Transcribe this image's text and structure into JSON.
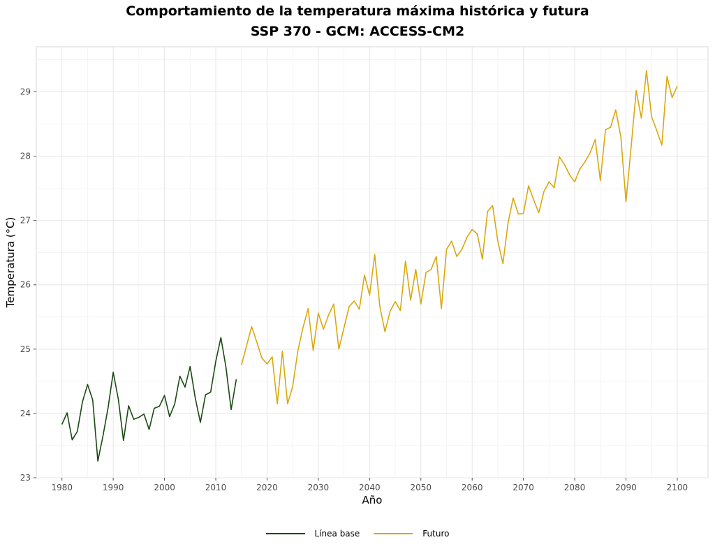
{
  "chart_data": {
    "type": "line",
    "title": "Comportamiento de la temperatura máxima histórica y futura",
    "subtitle": "SSP 370 - GCM: ACCESS-CM2",
    "xlabel": "Año",
    "ylabel": "Temperatura (°C)",
    "xlim": [
      1975,
      2106
    ],
    "ylim": [
      23,
      29.7
    ],
    "xticks": [
      1980,
      1990,
      2000,
      2010,
      2020,
      2030,
      2040,
      2050,
      2060,
      2070,
      2080,
      2090,
      2100
    ],
    "yticks": [
      23,
      24,
      25,
      26,
      27,
      28,
      29
    ],
    "grid": true,
    "legend_position": "bottom",
    "series": [
      {
        "name": "Línea base",
        "color": "#1a4a12",
        "x": [
          1980,
          1981,
          1982,
          1983,
          1984,
          1985,
          1986,
          1987,
          1988,
          1989,
          1990,
          1991,
          1992,
          1993,
          1994,
          1995,
          1996,
          1997,
          1998,
          1999,
          2000,
          2001,
          2002,
          2003,
          2004,
          2005,
          2006,
          2007,
          2008,
          2009,
          2010,
          2011,
          2012,
          2013,
          2014
        ],
        "values": [
          23.83,
          24.01,
          23.59,
          23.72,
          24.18,
          24.45,
          24.21,
          23.26,
          23.65,
          24.09,
          24.64,
          24.22,
          23.58,
          24.12,
          23.91,
          23.94,
          23.99,
          23.75,
          24.08,
          24.11,
          24.28,
          23.95,
          24.15,
          24.58,
          24.41,
          24.73,
          24.24,
          23.86,
          24.29,
          24.33,
          24.81,
          25.18,
          24.71,
          24.06,
          24.53
        ]
      },
      {
        "name": "Futuro",
        "color": "#d9a80f",
        "x": [
          2015,
          2016,
          2017,
          2018,
          2019,
          2020,
          2021,
          2022,
          2023,
          2024,
          2025,
          2026,
          2027,
          2028,
          2029,
          2030,
          2031,
          2032,
          2033,
          2034,
          2035,
          2036,
          2037,
          2038,
          2039,
          2040,
          2041,
          2042,
          2043,
          2044,
          2045,
          2046,
          2047,
          2048,
          2049,
          2050,
          2051,
          2052,
          2053,
          2054,
          2055,
          2056,
          2057,
          2058,
          2059,
          2060,
          2061,
          2062,
          2063,
          2064,
          2065,
          2066,
          2067,
          2068,
          2069,
          2070,
          2071,
          2072,
          2073,
          2074,
          2075,
          2076,
          2077,
          2078,
          2079,
          2080,
          2081,
          2082,
          2083,
          2084,
          2085,
          2086,
          2087,
          2088,
          2089,
          2090,
          2091,
          2092,
          2093,
          2094,
          2095,
          2096,
          2097,
          2098,
          2099,
          2100
        ],
        "values": [
          24.75,
          25.05,
          25.35,
          25.11,
          24.86,
          24.77,
          24.88,
          24.15,
          24.97,
          24.15,
          24.42,
          24.97,
          25.33,
          25.63,
          24.98,
          25.56,
          25.31,
          25.53,
          25.7,
          25.0,
          25.33,
          25.66,
          25.75,
          25.62,
          26.15,
          25.84,
          26.47,
          25.66,
          25.27,
          25.59,
          25.74,
          25.6,
          26.37,
          25.76,
          26.24,
          25.7,
          26.19,
          26.24,
          26.44,
          25.63,
          26.55,
          26.68,
          26.44,
          26.55,
          26.74,
          26.86,
          26.79,
          26.4,
          27.14,
          27.23,
          26.68,
          26.33,
          26.96,
          27.35,
          27.1,
          27.11,
          27.54,
          27.32,
          27.12,
          27.45,
          27.6,
          27.51,
          27.99,
          27.87,
          27.71,
          27.6,
          27.8,
          27.91,
          28.05,
          28.26,
          27.62,
          28.41,
          28.45,
          28.72,
          28.3,
          27.29,
          28.14,
          29.02,
          28.59,
          29.33,
          28.61,
          28.4,
          28.17,
          29.24,
          28.91,
          29.09
        ]
      }
    ]
  }
}
